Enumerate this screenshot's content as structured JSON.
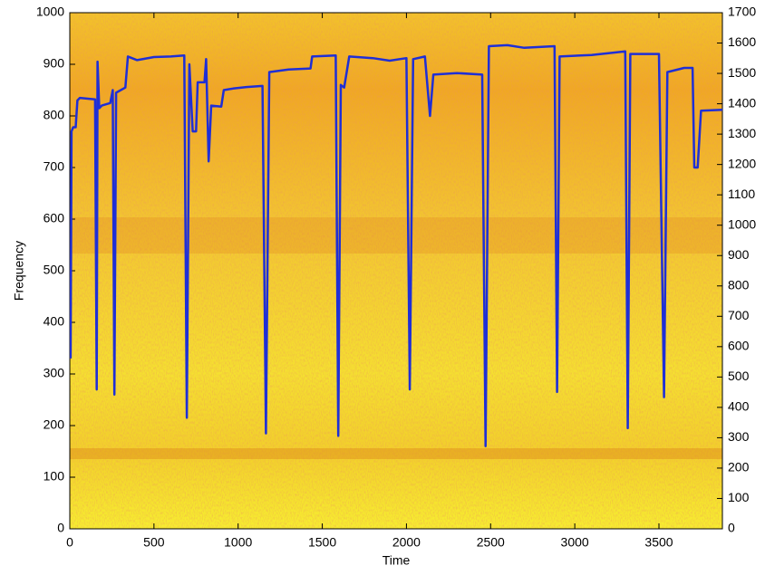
{
  "chart_data": {
    "type": "line",
    "xlabel": "Time",
    "ylabel": "Frequency",
    "x": [
      5,
      10,
      20,
      35,
      45,
      60,
      150,
      160,
      165,
      175,
      190,
      240,
      255,
      265,
      275,
      330,
      345,
      400,
      500,
      600,
      680,
      695,
      710,
      730,
      750,
      760,
      800,
      810,
      825,
      840,
      900,
      915,
      970,
      1050,
      1145,
      1165,
      1185,
      1300,
      1430,
      1440,
      1580,
      1595,
      1610,
      1630,
      1660,
      1800,
      1900,
      2000,
      2020,
      2040,
      2110,
      2140,
      2160,
      2300,
      2450,
      2470,
      2490,
      2600,
      2700,
      2880,
      2895,
      2910,
      3100,
      3300,
      3315,
      3330,
      3500,
      3530,
      3550,
      3650,
      3700,
      3710,
      3730,
      3750,
      3877
    ],
    "series": [
      {
        "color": "#1f2fd6",
        "values": [
          330,
          770,
          778,
          778,
          830,
          835,
          832,
          270,
          905,
          815,
          820,
          825,
          850,
          260,
          845,
          855,
          915,
          908,
          914,
          915,
          917,
          215,
          900,
          770,
          770,
          865,
          865,
          910,
          712,
          820,
          818,
          850,
          853,
          856,
          858,
          185,
          885,
          890,
          892,
          915,
          917,
          180,
          860,
          855,
          915,
          912,
          907,
          912,
          270,
          910,
          915,
          800,
          880,
          883,
          880,
          160,
          935,
          937,
          932,
          935,
          265,
          915,
          918,
          925,
          195,
          920,
          920,
          255,
          885,
          893,
          893,
          700,
          700,
          810,
          812
        ]
      }
    ],
    "xlim": [
      0,
      3877
    ],
    "ylim": [
      0,
      1000
    ],
    "y2lim": [
      0,
      1700
    ],
    "xticks": [
      0,
      500,
      1000,
      1500,
      2000,
      2500,
      3000,
      3500
    ],
    "yticks": [
      0,
      100,
      200,
      300,
      400,
      500,
      600,
      700,
      800,
      900,
      1000
    ],
    "y2ticks": [
      0,
      100,
      200,
      300,
      400,
      500,
      600,
      700,
      800,
      900,
      1000,
      1100,
      1200,
      1300,
      1400,
      1500,
      1600,
      1700
    ]
  }
}
